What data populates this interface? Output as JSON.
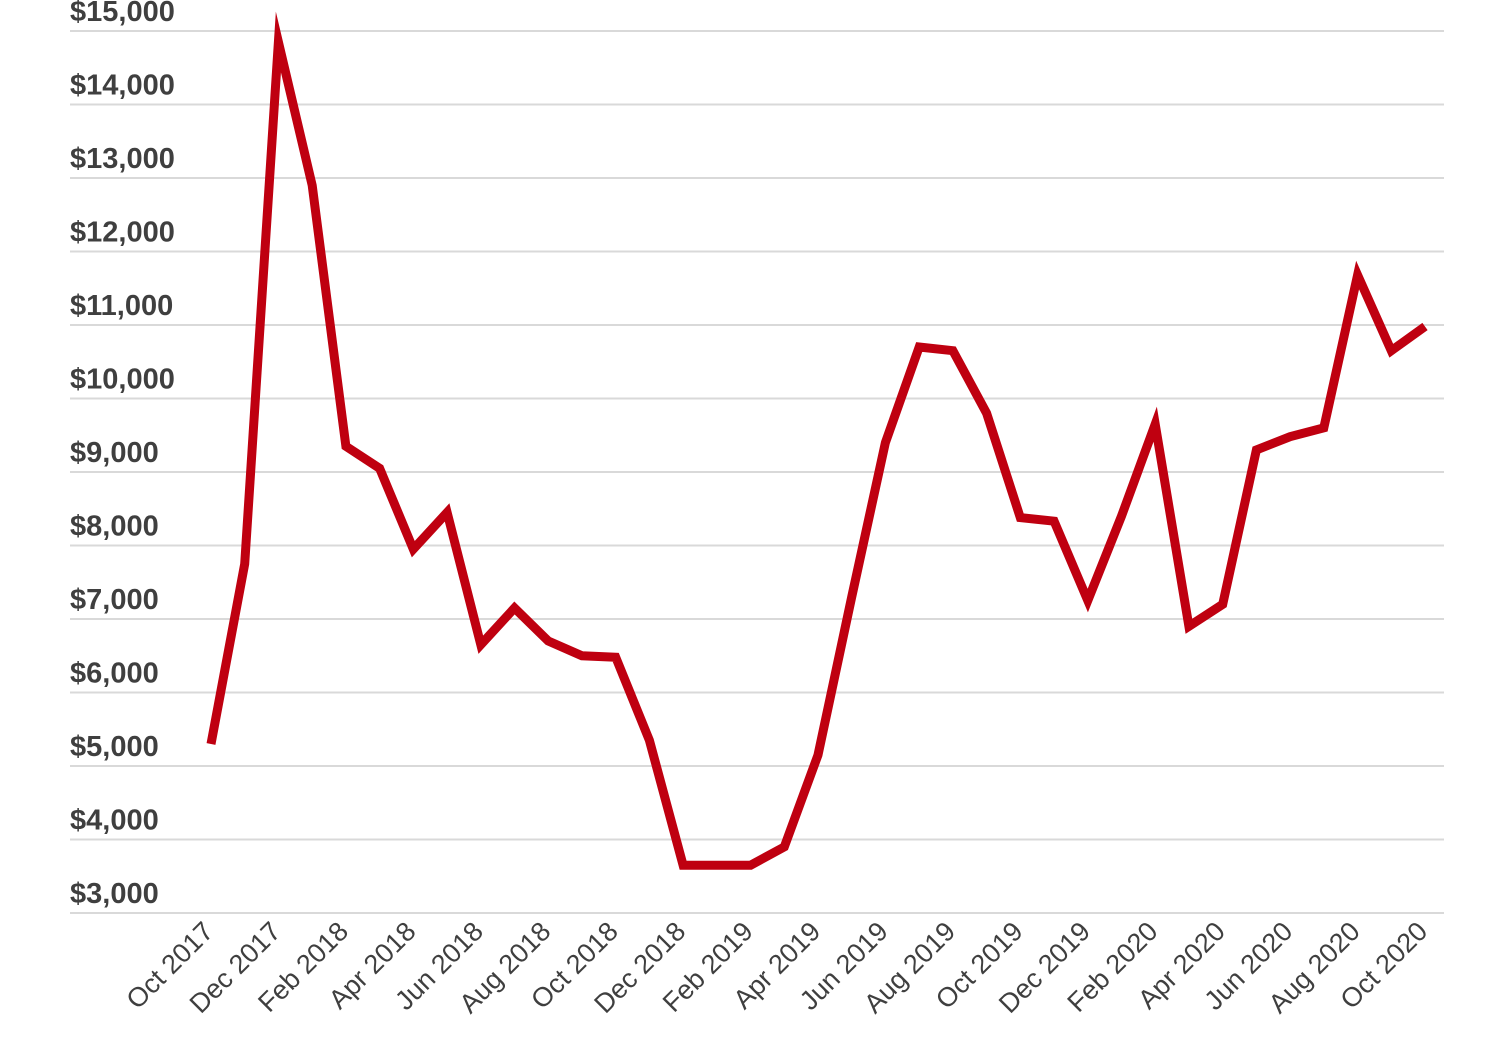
{
  "chart_data": {
    "type": "line",
    "title": "",
    "xlabel": "",
    "ylabel": "",
    "x": [
      "Oct 2017",
      "Nov 2017",
      "Dec 2017",
      "Jan 2018",
      "Feb 2018",
      "Mar 2018",
      "Apr 2018",
      "May 2018",
      "Jun 2018",
      "Jul 2018",
      "Aug 2018",
      "Sep 2018",
      "Oct 2018",
      "Nov 2018",
      "Dec 2018",
      "Jan 2019",
      "Feb 2019",
      "Mar 2019",
      "Apr 2019",
      "May 2019",
      "Jun 2019",
      "Jul 2019",
      "Aug 2019",
      "Sep 2019",
      "Oct 2019",
      "Nov 2019",
      "Dec 2019",
      "Jan 2020",
      "Feb 2020",
      "Mar 2020",
      "Apr 2020",
      "May 2020",
      "Jun 2020",
      "Jul 2020",
      "Aug 2020",
      "Sep 2020",
      "Oct 2020"
    ],
    "x_tick_labels": [
      "Oct 2017",
      "Dec 2017",
      "Feb 2018",
      "Apr 2018",
      "Jun 2018",
      "Aug 2018",
      "Oct 2018",
      "Dec 2018",
      "Feb 2019",
      "Apr 2019",
      "Jun 2019",
      "Aug 2019",
      "Oct 2019",
      "Dec 2019",
      "Feb 2020",
      "Apr 2020",
      "Jun 2020",
      "Aug 2020",
      "Oct 2020"
    ],
    "y_tick_labels": [
      "$3,000",
      "$4,000",
      "$5,000",
      "$6,000",
      "$7,000",
      "$8,000",
      "$9,000",
      "$10,000",
      "$11,000",
      "$12,000",
      "$13,000",
      "$14,000",
      "$15,000"
    ],
    "ylim": [
      3000,
      15000
    ],
    "grid": true,
    "legend": "none",
    "series": [
      {
        "color": "#bf0010",
        "values": [
          5300,
          7750,
          14850,
          12900,
          9350,
          9050,
          7950,
          8450,
          6650,
          7150,
          6700,
          6500,
          6480,
          5350,
          3650,
          3650,
          3650,
          3900,
          5150,
          7300,
          9400,
          10700,
          10650,
          9800,
          8380,
          8330,
          7250,
          8400,
          9650,
          6900,
          7200,
          9300,
          9480,
          9600,
          11680,
          10650,
          10980
        ]
      }
    ]
  }
}
